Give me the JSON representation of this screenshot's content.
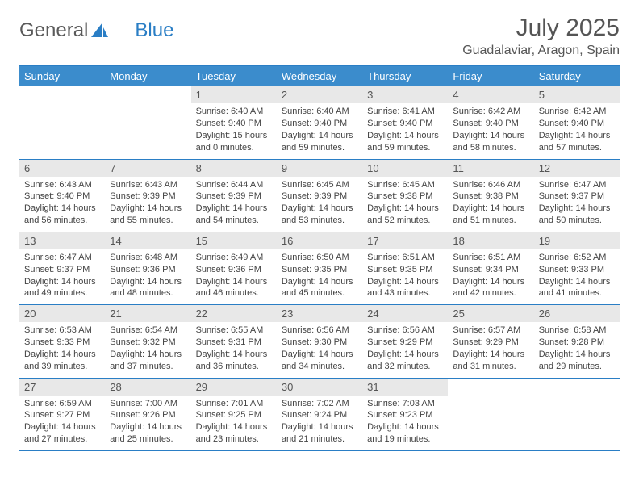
{
  "logo": {
    "text1": "General",
    "text2": "Blue"
  },
  "title": "July 2025",
  "location": "Guadalaviar, Aragon, Spain",
  "header_bg": "#3b8ccc",
  "border_color": "#2a7ec5",
  "daynum_bg": "#e8e8e8",
  "weekdays": [
    "Sunday",
    "Monday",
    "Tuesday",
    "Wednesday",
    "Thursday",
    "Friday",
    "Saturday"
  ],
  "weeks": [
    [
      null,
      null,
      {
        "n": "1",
        "sr": "6:40 AM",
        "ss": "9:40 PM",
        "dl": "15 hours and 0 minutes."
      },
      {
        "n": "2",
        "sr": "6:40 AM",
        "ss": "9:40 PM",
        "dl": "14 hours and 59 minutes."
      },
      {
        "n": "3",
        "sr": "6:41 AM",
        "ss": "9:40 PM",
        "dl": "14 hours and 59 minutes."
      },
      {
        "n": "4",
        "sr": "6:42 AM",
        "ss": "9:40 PM",
        "dl": "14 hours and 58 minutes."
      },
      {
        "n": "5",
        "sr": "6:42 AM",
        "ss": "9:40 PM",
        "dl": "14 hours and 57 minutes."
      }
    ],
    [
      {
        "n": "6",
        "sr": "6:43 AM",
        "ss": "9:40 PM",
        "dl": "14 hours and 56 minutes."
      },
      {
        "n": "7",
        "sr": "6:43 AM",
        "ss": "9:39 PM",
        "dl": "14 hours and 55 minutes."
      },
      {
        "n": "8",
        "sr": "6:44 AM",
        "ss": "9:39 PM",
        "dl": "14 hours and 54 minutes."
      },
      {
        "n": "9",
        "sr": "6:45 AM",
        "ss": "9:39 PM",
        "dl": "14 hours and 53 minutes."
      },
      {
        "n": "10",
        "sr": "6:45 AM",
        "ss": "9:38 PM",
        "dl": "14 hours and 52 minutes."
      },
      {
        "n": "11",
        "sr": "6:46 AM",
        "ss": "9:38 PM",
        "dl": "14 hours and 51 minutes."
      },
      {
        "n": "12",
        "sr": "6:47 AM",
        "ss": "9:37 PM",
        "dl": "14 hours and 50 minutes."
      }
    ],
    [
      {
        "n": "13",
        "sr": "6:47 AM",
        "ss": "9:37 PM",
        "dl": "14 hours and 49 minutes."
      },
      {
        "n": "14",
        "sr": "6:48 AM",
        "ss": "9:36 PM",
        "dl": "14 hours and 48 minutes."
      },
      {
        "n": "15",
        "sr": "6:49 AM",
        "ss": "9:36 PM",
        "dl": "14 hours and 46 minutes."
      },
      {
        "n": "16",
        "sr": "6:50 AM",
        "ss": "9:35 PM",
        "dl": "14 hours and 45 minutes."
      },
      {
        "n": "17",
        "sr": "6:51 AM",
        "ss": "9:35 PM",
        "dl": "14 hours and 43 minutes."
      },
      {
        "n": "18",
        "sr": "6:51 AM",
        "ss": "9:34 PM",
        "dl": "14 hours and 42 minutes."
      },
      {
        "n": "19",
        "sr": "6:52 AM",
        "ss": "9:33 PM",
        "dl": "14 hours and 41 minutes."
      }
    ],
    [
      {
        "n": "20",
        "sr": "6:53 AM",
        "ss": "9:33 PM",
        "dl": "14 hours and 39 minutes."
      },
      {
        "n": "21",
        "sr": "6:54 AM",
        "ss": "9:32 PM",
        "dl": "14 hours and 37 minutes."
      },
      {
        "n": "22",
        "sr": "6:55 AM",
        "ss": "9:31 PM",
        "dl": "14 hours and 36 minutes."
      },
      {
        "n": "23",
        "sr": "6:56 AM",
        "ss": "9:30 PM",
        "dl": "14 hours and 34 minutes."
      },
      {
        "n": "24",
        "sr": "6:56 AM",
        "ss": "9:29 PM",
        "dl": "14 hours and 32 minutes."
      },
      {
        "n": "25",
        "sr": "6:57 AM",
        "ss": "9:29 PM",
        "dl": "14 hours and 31 minutes."
      },
      {
        "n": "26",
        "sr": "6:58 AM",
        "ss": "9:28 PM",
        "dl": "14 hours and 29 minutes."
      }
    ],
    [
      {
        "n": "27",
        "sr": "6:59 AM",
        "ss": "9:27 PM",
        "dl": "14 hours and 27 minutes."
      },
      {
        "n": "28",
        "sr": "7:00 AM",
        "ss": "9:26 PM",
        "dl": "14 hours and 25 minutes."
      },
      {
        "n": "29",
        "sr": "7:01 AM",
        "ss": "9:25 PM",
        "dl": "14 hours and 23 minutes."
      },
      {
        "n": "30",
        "sr": "7:02 AM",
        "ss": "9:24 PM",
        "dl": "14 hours and 21 minutes."
      },
      {
        "n": "31",
        "sr": "7:03 AM",
        "ss": "9:23 PM",
        "dl": "14 hours and 19 minutes."
      },
      null,
      null
    ]
  ],
  "labels": {
    "sunrise": "Sunrise:",
    "sunset": "Sunset:",
    "daylight": "Daylight:"
  }
}
